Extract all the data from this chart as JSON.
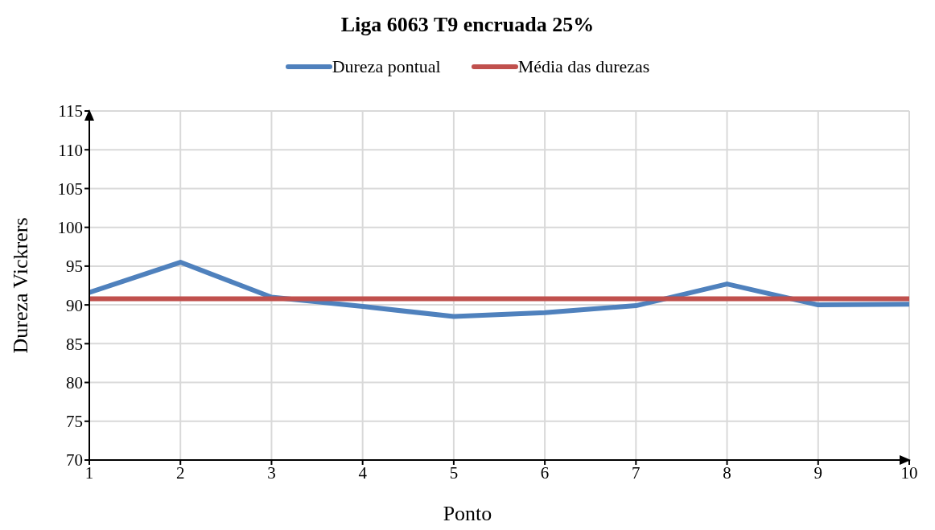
{
  "chart_data": {
    "type": "line",
    "title": "Liga 6063 T9 encruada 25%",
    "xlabel": "Ponto",
    "ylabel": "Dureza Vickrers",
    "x": [
      1,
      2,
      3,
      4,
      5,
      6,
      7,
      8,
      9,
      10
    ],
    "series": [
      {
        "name": "Dureza pontual",
        "color": "#4f81bd",
        "values": [
          91.6,
          95.5,
          91.0,
          89.8,
          88.5,
          89.0,
          89.9,
          92.7,
          90.0,
          90.1
        ]
      },
      {
        "name": "Média das durezas",
        "color": "#c0504d",
        "values": [
          90.8,
          90.8,
          90.8,
          90.8,
          90.8,
          90.8,
          90.8,
          90.8,
          90.8,
          90.8
        ]
      }
    ],
    "xlim": [
      1,
      10
    ],
    "xticks": [
      1,
      2,
      3,
      4,
      5,
      6,
      7,
      8,
      9,
      10
    ],
    "ylim": [
      70,
      115
    ],
    "yticks": [
      70,
      75,
      80,
      85,
      90,
      95,
      100,
      105,
      110,
      115
    ],
    "grid": true,
    "legend": "top",
    "marker": "none",
    "line_style": "solid"
  }
}
